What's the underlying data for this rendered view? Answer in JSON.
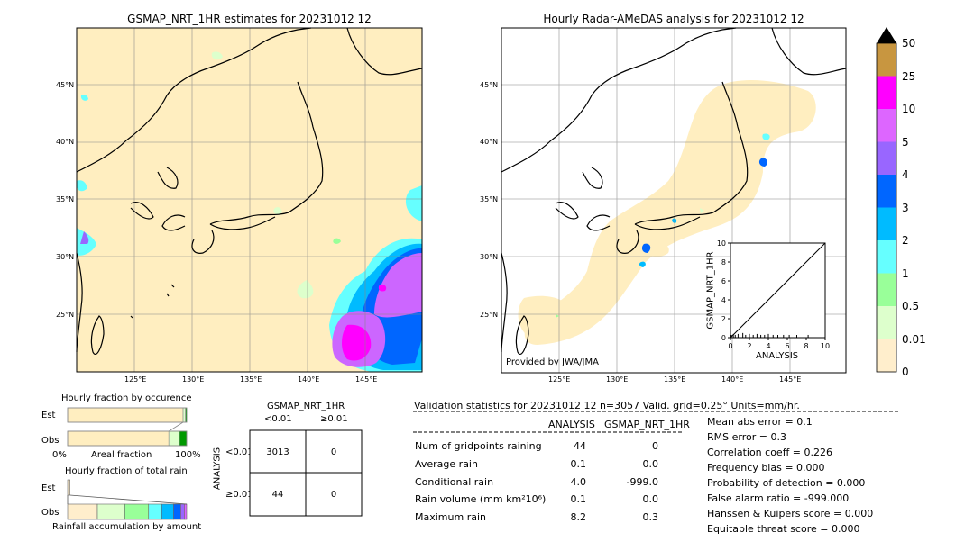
{
  "left_map": {
    "title": "GSMAP_NRT_1HR estimates for 20231012 12",
    "lat_labels": [
      "45°N",
      "40°N",
      "35°N",
      "30°N",
      "25°N"
    ],
    "lon_labels": [
      "125°E",
      "130°E",
      "135°E",
      "140°E",
      "145°E"
    ]
  },
  "right_map": {
    "title": "Hourly Radar-AMeDAS analysis for 20231012 12",
    "lat_labels": [
      "45°N",
      "40°N",
      "35°N",
      "30°N",
      "25°N"
    ],
    "lon_labels": [
      "125°E",
      "130°E",
      "135°E",
      "140°E",
      "145°E"
    ],
    "credit": "Provided by JWA/JMA"
  },
  "colorbar": {
    "labels": [
      "50",
      "25",
      "10",
      "5",
      "4",
      "3",
      "2",
      "1",
      "0.5",
      "0.01",
      "0"
    ],
    "colors": [
      "#c89640",
      "#ff00ff",
      "#dd66ff",
      "#9966ff",
      "#0066ff",
      "#00bbff",
      "#66ffff",
      "#99ff99",
      "#ddffcc",
      "#ffeecc"
    ]
  },
  "chart_data": [
    {
      "type": "scatter",
      "title": "",
      "xlabel": "ANALYSIS",
      "ylabel": "GSMAP_NRT_1HR",
      "xlim": [
        0,
        10
      ],
      "ylim": [
        0,
        10
      ],
      "x_ticks": [
        "0",
        "2",
        "4",
        "6",
        "8",
        "10"
      ],
      "y_ticks": [
        "0",
        "2",
        "4",
        "6",
        "8",
        "10"
      ],
      "points": [
        [
          0.1,
          0.1
        ],
        [
          0.3,
          0.2
        ],
        [
          0.5,
          0.1
        ],
        [
          0.8,
          0.2
        ],
        [
          1.0,
          0.1
        ],
        [
          1.3,
          0.3
        ],
        [
          1.6,
          0.1
        ],
        [
          2.0,
          0.2
        ],
        [
          2.4,
          0.1
        ],
        [
          2.8,
          0.2
        ],
        [
          3.2,
          0.1
        ],
        [
          3.6,
          0.1
        ],
        [
          4.0,
          0.2
        ],
        [
          4.5,
          0.1
        ],
        [
          5.0,
          0.1
        ],
        [
          5.6,
          0.1
        ],
        [
          6.2,
          0.1
        ],
        [
          7.0,
          0.1
        ],
        [
          8.2,
          0.1
        ]
      ]
    },
    {
      "type": "bar",
      "title": "Hourly fraction by occurence",
      "categories": [
        "Est",
        "Obs"
      ],
      "xlabel": "Areal fraction",
      "x_ticks": [
        "0%",
        "100%"
      ],
      "series": [
        {
          "values": [
            0.97,
            0.85
          ]
        },
        {
          "values": [
            0.02,
            0.09
          ]
        },
        {
          "values": [
            0.01,
            0.06
          ]
        }
      ]
    },
    {
      "type": "bar",
      "title": "Hourly fraction of total rain",
      "categories": [
        "Est",
        "Obs"
      ],
      "xlabel": "Rainfall accumulation by amount",
      "segment_colors": [
        "#ffeecc",
        "#ddffcc",
        "#99ff99",
        "#66ffff",
        "#00bbff",
        "#0066ff",
        "#9966ff",
        "#dd66ff"
      ],
      "series": [
        {
          "values": [
            0.02,
            0.25
          ]
        },
        {
          "values": [
            0.0,
            0.23
          ]
        },
        {
          "values": [
            0.0,
            0.2
          ]
        },
        {
          "values": [
            0.0,
            0.11
          ]
        },
        {
          "values": [
            0.0,
            0.1
          ]
        },
        {
          "values": [
            0.0,
            0.06
          ]
        },
        {
          "values": [
            0.0,
            0.03
          ]
        },
        {
          "values": [
            0.0,
            0.02
          ]
        }
      ]
    },
    {
      "type": "table",
      "title": "GSMAP_NRT_1HR",
      "col_headers": [
        "<0.01",
        "≥0.01"
      ],
      "row_axis_label": "ANALYSIS",
      "row_headers": [
        "<0.01",
        "≥0.01"
      ],
      "cells": [
        [
          "3013",
          "0"
        ],
        [
          "44",
          "0"
        ]
      ]
    }
  ],
  "validation": {
    "header": "Validation statistics for 20231012 12  n=3057 Valid. grid=0.25° Units=mm/hr.",
    "col_analysis": "ANALYSIS",
    "col_gsmap": "GSMAP_NRT_1HR",
    "rows": [
      {
        "label": "Num of gridpoints raining",
        "analysis": "44",
        "gsmap": "0"
      },
      {
        "label": "Average rain",
        "analysis": "0.1",
        "gsmap": "0.0"
      },
      {
        "label": "Conditional rain",
        "analysis": "4.0",
        "gsmap": "-999.0"
      },
      {
        "label": "Rain volume (mm km²10⁶)",
        "analysis": "0.1",
        "gsmap": "0.0"
      },
      {
        "label": "Maximum rain",
        "analysis": "8.2",
        "gsmap": "0.3"
      }
    ],
    "scores": [
      "Mean abs error =    0.1",
      "RMS error =    0.3",
      "Correlation coeff =  0.226",
      "Frequency bias =  0.000",
      "Probability of detection =  0.000",
      "False alarm ratio = -999.000",
      "Hanssen & Kuipers score =  0.000",
      "Equitable threat score =  0.000"
    ]
  }
}
